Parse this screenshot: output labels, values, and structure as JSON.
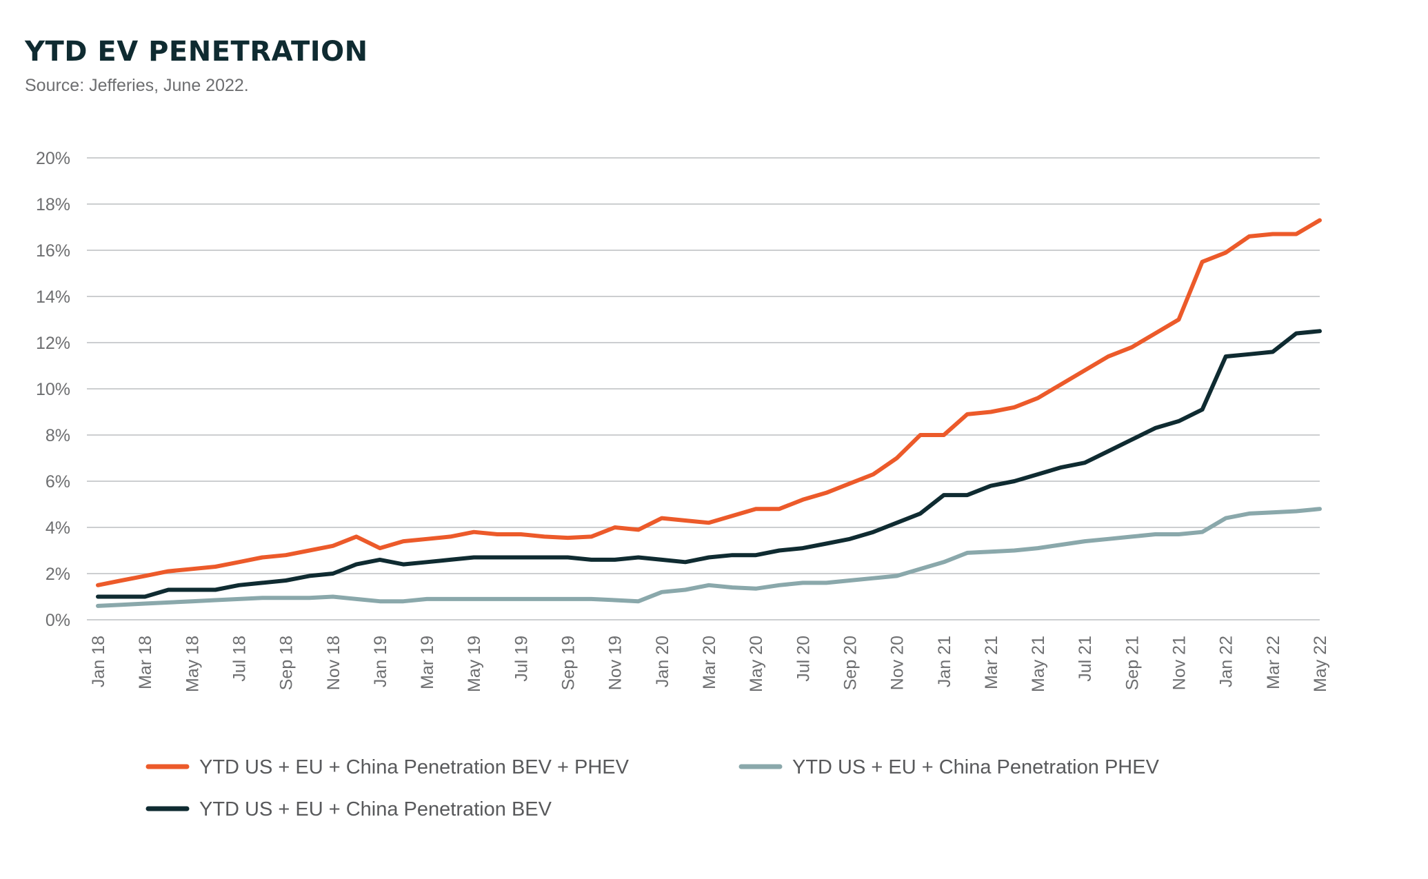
{
  "header": {
    "title": "YTD EV PENETRATION",
    "subtitle": "Source: Jefferies, June 2022."
  },
  "colors": {
    "bev_phev": "#ec5a2a",
    "bev": "#0f2b31",
    "phev": "#8aa8ab",
    "grid": "#bcbdc0",
    "text": "#6d6e70"
  },
  "chart_data": {
    "type": "line",
    "title": "YTD EV PENETRATION",
    "subtitle": "Source: Jefferies, June 2022.",
    "xlabel": "",
    "ylabel": "",
    "ylim": [
      0,
      20
    ],
    "grid": true,
    "legend_position": "bottom",
    "y_tick_labels": [
      "0%",
      "2%",
      "4%",
      "6%",
      "8%",
      "10%",
      "12%",
      "14%",
      "16%",
      "18%",
      "20%"
    ],
    "x": [
      "Jan 18",
      "Feb 18",
      "Mar 18",
      "Apr 18",
      "May 18",
      "Jun 18",
      "Jul 18",
      "Aug 18",
      "Sep 18",
      "Oct 18",
      "Nov 18",
      "Dec 18",
      "Jan 19",
      "Feb 19",
      "Mar 19",
      "Apr 19",
      "May 19",
      "Jun 19",
      "Jul 19",
      "Aug 19",
      "Sep 19",
      "Oct 19",
      "Nov 19",
      "Dec 19",
      "Jan 20",
      "Feb 20",
      "Mar 20",
      "Apr 20",
      "May 20",
      "Jun 20",
      "Jul 20",
      "Aug 20",
      "Sep 20",
      "Oct 20",
      "Nov 20",
      "Dec 20",
      "Jan 21",
      "Feb 21",
      "Mar 21",
      "Apr 21",
      "May 21",
      "Jun 21",
      "Jul 21",
      "Aug 21",
      "Sep 21",
      "Oct 21",
      "Nov 21",
      "Dec 21",
      "Jan 22",
      "Feb 22",
      "Mar 22",
      "Apr 22",
      "May 22"
    ],
    "x_tick_labels": [
      "Jan 18",
      "Mar 18",
      "May 18",
      "Jul 18",
      "Sep 18",
      "Nov 18",
      "Jan 19",
      "Mar 19",
      "May 19",
      "Jul 19",
      "Sep 19",
      "Nov 19",
      "Jan 20",
      "Mar 20",
      "May 20",
      "Jul 20",
      "Sep 20",
      "Nov 20",
      "Jan 21",
      "Mar 21",
      "May 21",
      "Jul 21",
      "Sep 21",
      "Nov 21",
      "Jan 22",
      "Mar 22",
      "May 22"
    ],
    "series": [
      {
        "name": "YTD US + EU + China Penetration BEV + PHEV",
        "color": "#ec5a2a",
        "values": [
          1.5,
          1.7,
          1.9,
          2.1,
          2.2,
          2.3,
          2.5,
          2.7,
          2.8,
          3.0,
          3.2,
          3.6,
          3.1,
          3.4,
          3.5,
          3.6,
          3.8,
          3.7,
          3.7,
          3.6,
          3.55,
          3.6,
          4.0,
          3.9,
          4.4,
          4.3,
          4.2,
          4.5,
          4.8,
          4.8,
          5.2,
          5.5,
          5.9,
          6.3,
          7.0,
          8.0,
          8.0,
          8.9,
          9.0,
          9.2,
          9.6,
          10.2,
          10.8,
          11.4,
          11.8,
          12.4,
          13.0,
          15.5,
          15.9,
          16.6,
          16.7,
          16.7,
          17.3
        ]
      },
      {
        "name": "YTD US + EU + China Penetration BEV",
        "color": "#0f2b31",
        "values": [
          1.0,
          1.0,
          1.0,
          1.3,
          1.3,
          1.3,
          1.5,
          1.6,
          1.7,
          1.9,
          2.0,
          2.4,
          2.6,
          2.4,
          2.5,
          2.6,
          2.7,
          2.7,
          2.7,
          2.7,
          2.7,
          2.6,
          2.6,
          2.7,
          2.6,
          2.5,
          2.7,
          2.8,
          2.8,
          3.0,
          3.1,
          3.3,
          3.5,
          3.8,
          4.2,
          4.6,
          5.4,
          5.4,
          5.8,
          6.0,
          6.3,
          6.6,
          6.8,
          7.3,
          7.8,
          8.3,
          8.6,
          9.1,
          11.4,
          11.5,
          11.6,
          12.4,
          12.5
        ]
      },
      {
        "name": "YTD US + EU + China Penetration PHEV",
        "color": "#8aa8ab",
        "values": [
          0.6,
          0.65,
          0.7,
          0.75,
          0.8,
          0.85,
          0.9,
          0.95,
          0.95,
          0.95,
          1.0,
          0.9,
          0.8,
          0.8,
          0.9,
          0.9,
          0.9,
          0.9,
          0.9,
          0.9,
          0.9,
          0.9,
          0.85,
          0.8,
          1.2,
          1.3,
          1.5,
          1.4,
          1.35,
          1.5,
          1.6,
          1.6,
          1.7,
          1.8,
          1.9,
          2.2,
          2.5,
          2.9,
          2.95,
          3.0,
          3.1,
          3.25,
          3.4,
          3.5,
          3.6,
          3.7,
          3.7,
          3.8,
          4.4,
          4.6,
          4.65,
          4.7,
          4.8
        ]
      }
    ]
  }
}
